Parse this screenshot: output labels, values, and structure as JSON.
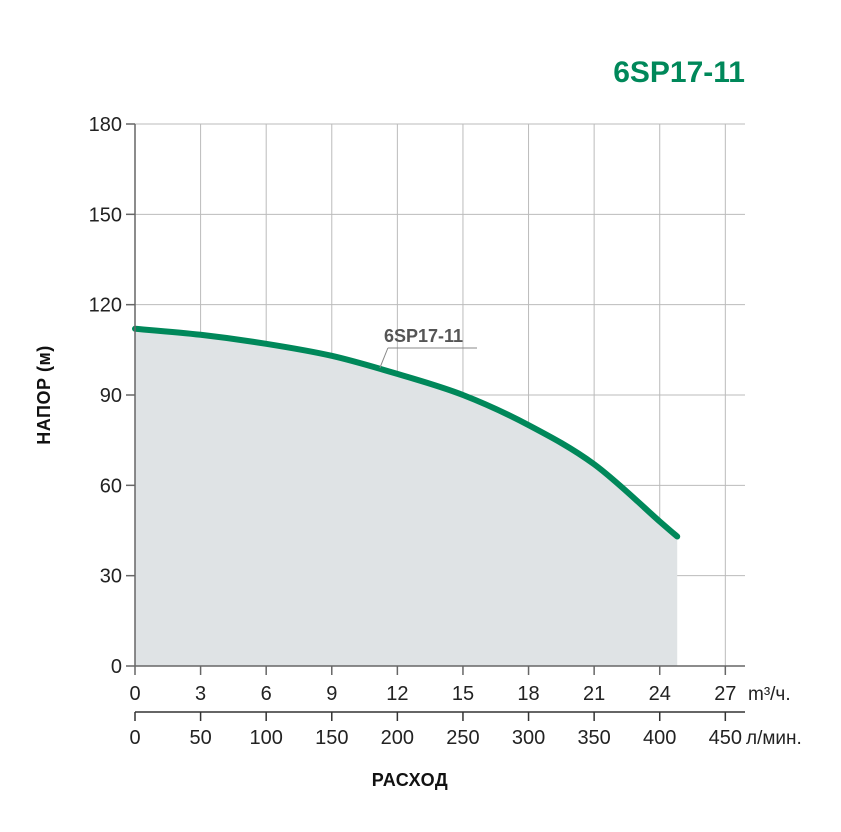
{
  "chart_data": {
    "type": "area",
    "title": "6SP17-11",
    "ylabel": "НАПОР (м)",
    "xlabel": "РАСХОД",
    "ylim": [
      0,
      180
    ],
    "yticks": [
      0,
      30,
      60,
      90,
      120,
      150,
      180
    ],
    "x_primary": {
      "unit": "m³/ч.",
      "range": [
        0,
        27.9
      ],
      "ticks": [
        0,
        3,
        6,
        9,
        12,
        15,
        18,
        21,
        24,
        27
      ]
    },
    "x_secondary": {
      "unit": "л/мин.",
      "range": [
        0,
        465
      ],
      "ticks": [
        0,
        50,
        100,
        150,
        200,
        250,
        300,
        350,
        400,
        450
      ]
    },
    "grid": true,
    "colors": {
      "curve": "#00885a",
      "fill": "#dfe3e5",
      "grid": "#bbbbbb",
      "axis": "#666666",
      "title": "#00885a"
    },
    "series": [
      {
        "name": "6SP17-11",
        "x_unit": "m³/ч.",
        "x": [
          0,
          3,
          6,
          9,
          12,
          15,
          18,
          21,
          24,
          24.8
        ],
        "y": [
          112,
          110,
          107,
          103,
          97,
          90,
          80,
          67,
          48,
          43
        ]
      }
    ]
  }
}
